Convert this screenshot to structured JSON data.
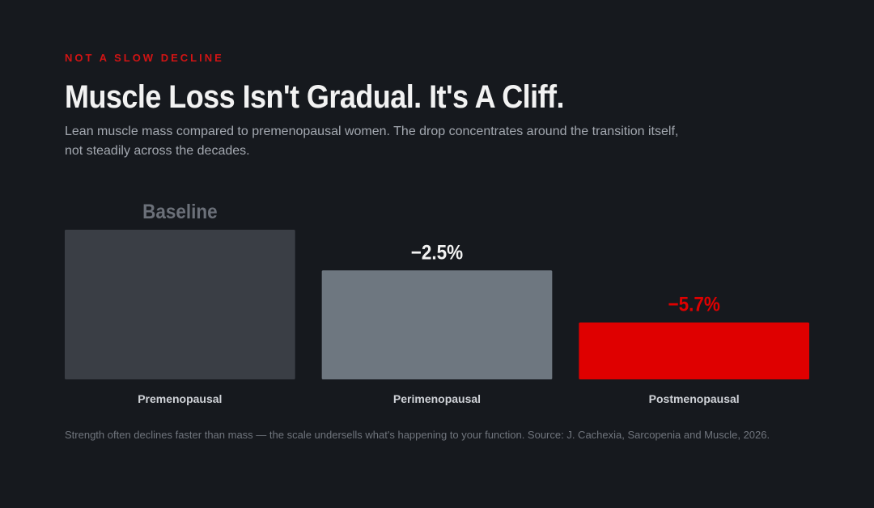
{
  "eyebrow": "NOT A SLOW DECLINE",
  "title": "Muscle Loss Isn't Gradual. It's A Cliff.",
  "subtitle": "Lean muscle mass compared to premenopausal women. The drop concentrates around the transition itself, not steadily across the decades.",
  "footnote": "Strength often declines faster than mass — the scale undersells what's happening to your function. Source: J. Cachexia, Sarcopenia and Muscle, 2026.",
  "colors": {
    "background": "#16191e",
    "accent": "#df0000",
    "bar_baseline": "#3a3e45",
    "bar_mid": "#6e7780",
    "label_muted": "#6b7079",
    "label_light": "#f2f2f2"
  },
  "chart_data": {
    "type": "bar",
    "categories": [
      "Premenopausal",
      "Perimenopausal",
      "Postmenopausal"
    ],
    "values": [
      0,
      -2.5,
      -5.7
    ],
    "data_labels": [
      "Baseline",
      "−2.5%",
      "−5.7%"
    ],
    "ylim": [
      -9.2,
      0
    ],
    "grid": false,
    "legend": "none"
  }
}
